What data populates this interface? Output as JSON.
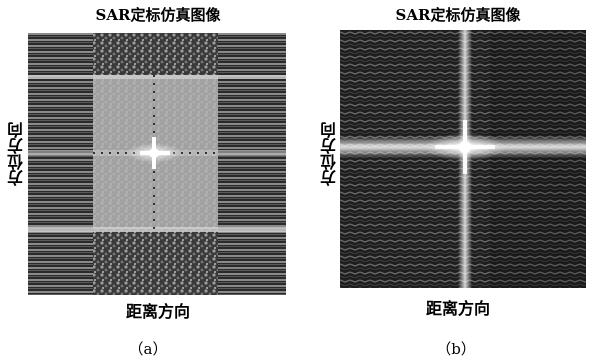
{
  "panels": [
    {
      "id": "a",
      "title": "SAR定标仿真图像",
      "ylabel": "方位方向",
      "xlabel": "距离方向",
      "caption": "（a）"
    },
    {
      "id": "b",
      "title": "SAR定标仿真图像",
      "ylabel": "方位方向",
      "xlabel": "距离方向",
      "caption": "（b）"
    }
  ]
}
